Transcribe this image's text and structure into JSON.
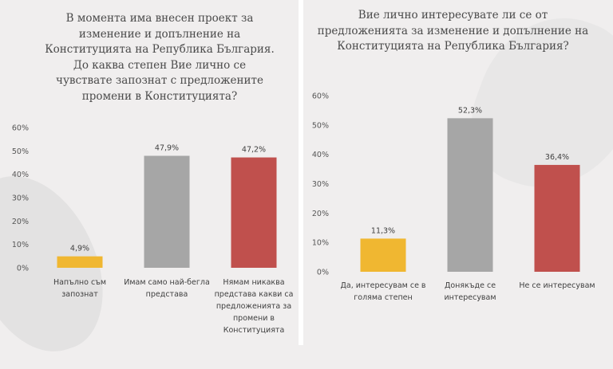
{
  "chart_data": [
    {
      "type": "bar",
      "title": "В момента има внесен проект за изменение и допълнение на Конституцията на Република България. До каква степен Вие лично се чувствате запознат с предложените промени в Конституцията?",
      "categories": [
        "Напълно съм запознат",
        "Имам само най-бегла представа",
        "Нямам никаква представа какви са предложенията за промени в Конституцията"
      ],
      "values": [
        4.9,
        47.9,
        47.2
      ],
      "value_labels": [
        "4,9%",
        "47,9%",
        "47,2%"
      ],
      "colors": [
        "#f0b731",
        "#a6a6a6",
        "#c0504d"
      ],
      "yticks": [
        0,
        10,
        20,
        30,
        40,
        50,
        60
      ],
      "ytick_labels": [
        "0%",
        "10%",
        "20%",
        "30%",
        "40%",
        "50%",
        "60%"
      ],
      "ylim": [
        0,
        60
      ],
      "xlabel": "",
      "ylabel": "",
      "grid": false
    },
    {
      "type": "bar",
      "title": "Вие лично интересувате ли се от предложенията за изменение и допълнение на Конституцията на Република България?",
      "categories": [
        "Да, интересувам се в голяма степен",
        "Донякъде се интересувам",
        "Не се интересувам"
      ],
      "values": [
        11.3,
        52.3,
        36.4
      ],
      "value_labels": [
        "11,3%",
        "52,3%",
        "36,4%"
      ],
      "colors": [
        "#f0b731",
        "#a6a6a6",
        "#c0504d"
      ],
      "yticks": [
        0,
        10,
        20,
        30,
        40,
        50,
        60
      ],
      "ytick_labels": [
        "0%",
        "10%",
        "20%",
        "30%",
        "40%",
        "50%",
        "60%"
      ],
      "ylim": [
        0,
        60
      ],
      "xlabel": "",
      "ylabel": "",
      "grid": false
    }
  ]
}
